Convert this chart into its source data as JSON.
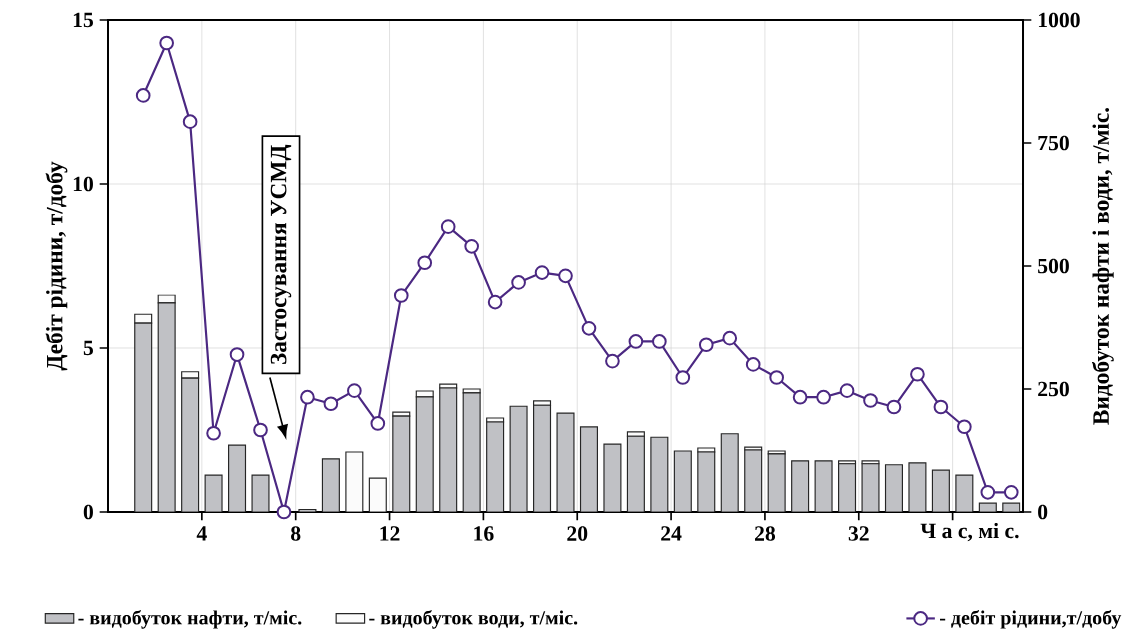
{
  "chart_data": {
    "type": "bar",
    "stacked": true,
    "xlabel": "Ч а с,  мі с.",
    "ylabel": "Дебіт  рідини, т/добу",
    "y2label": "Видобуток нафти і води, т/міс.",
    "x": [
      1.5,
      2.5,
      3.5,
      4.5,
      5.5,
      6.5,
      7.5,
      8.5,
      9.5,
      10.5,
      11.5,
      12.5,
      13.5,
      14.5,
      15.5,
      16.5,
      17.5,
      18.5,
      19.5,
      20.5,
      21.5,
      22.5,
      23.5,
      24.5,
      25.5,
      26.5,
      27.5,
      28.5,
      29.5,
      30.5,
      31.5,
      32.5,
      33.5,
      34.5,
      35.5,
      36.5,
      37.5,
      38.5
    ],
    "xlim": [
      0,
      39
    ],
    "xticks": [
      4,
      8,
      12,
      16,
      20,
      24,
      28,
      32,
      {
        "value": 36,
        "label": null
      }
    ],
    "ylim": [
      0,
      15
    ],
    "yticks": [
      0,
      5,
      10,
      15
    ],
    "y2lim": [
      0,
      1000
    ],
    "y2ticks": [
      0,
      250,
      500,
      750,
      1000
    ],
    "grid": true,
    "legend": "bottom",
    "annotations": [
      "Застосування УСМД"
    ],
    "series": [
      {
        "name": "- видобуток нафти, т/міс.",
        "axis": "y2",
        "color": "#c0c1c5",
        "values": [
          384,
          425,
          272,
          75,
          136,
          75,
          0,
          5,
          108,
          0,
          0,
          195,
          234,
          252,
          242,
          183,
          215,
          217,
          201,
          173,
          138,
          154,
          152,
          124,
          122,
          159,
          126,
          118,
          104,
          104,
          98,
          98,
          96,
          100,
          85,
          75,
          18,
          18
        ]
      },
      {
        "name": "- видобуток води, т/міс.",
        "axis": "y2",
        "color": "#fbfbfb",
        "values": [
          18,
          16,
          13,
          0,
          0,
          0,
          0,
          0,
          0,
          122,
          69,
          8,
          12,
          8,
          8,
          8,
          0,
          9,
          0,
          0,
          0,
          9,
          0,
          0,
          8,
          0,
          6,
          6,
          0,
          0,
          6,
          6,
          0,
          0,
          0,
          0,
          0,
          0
        ]
      },
      {
        "name": "- дебіт рідини,т/добу",
        "type": "line",
        "color": "#4b2882",
        "marker": "circle",
        "line_style": "solid",
        "values": [
          12.7,
          14.3,
          11.9,
          2.4,
          4.8,
          2.5,
          0,
          3.5,
          3.3,
          3.7,
          2.7,
          6.6,
          7.6,
          8.7,
          8.1,
          6.4,
          7.0,
          7.3,
          7.2,
          5.6,
          4.6,
          5.2,
          5.2,
          4.1,
          5.1,
          5.3,
          4.5,
          4.1,
          3.5,
          3.5,
          3.7,
          3.4,
          3.2,
          4.2,
          3.2,
          2.6,
          0.6,
          0.6
        ]
      }
    ]
  }
}
